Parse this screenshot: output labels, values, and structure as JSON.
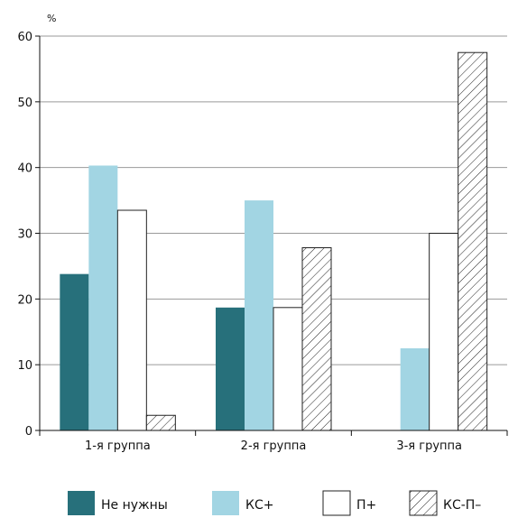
{
  "chart_data": {
    "type": "bar",
    "ylabel": "%",
    "ylim": [
      0,
      60
    ],
    "yticks": [
      0,
      10,
      20,
      30,
      40,
      50,
      60
    ],
    "grid": true,
    "legend_position": "bottom",
    "categories": [
      "1-я группа",
      "2-я группа",
      "3-я группа"
    ],
    "series": [
      {
        "name": "Не нужны",
        "values": [
          23.8,
          18.7,
          0
        ],
        "color": "#27707b",
        "pattern": "solid"
      },
      {
        "name": "КС+",
        "values": [
          40.3,
          35.0,
          12.5
        ],
        "color": "#a2d5e3",
        "pattern": "solid"
      },
      {
        "name": "П+",
        "values": [
          33.5,
          18.7,
          30.0
        ],
        "color": "#ffffff",
        "pattern": "solid"
      },
      {
        "name": "КС-П–",
        "values": [
          2.3,
          27.8,
          57.5
        ],
        "color": "#ffffff",
        "pattern": "hatch"
      }
    ]
  }
}
